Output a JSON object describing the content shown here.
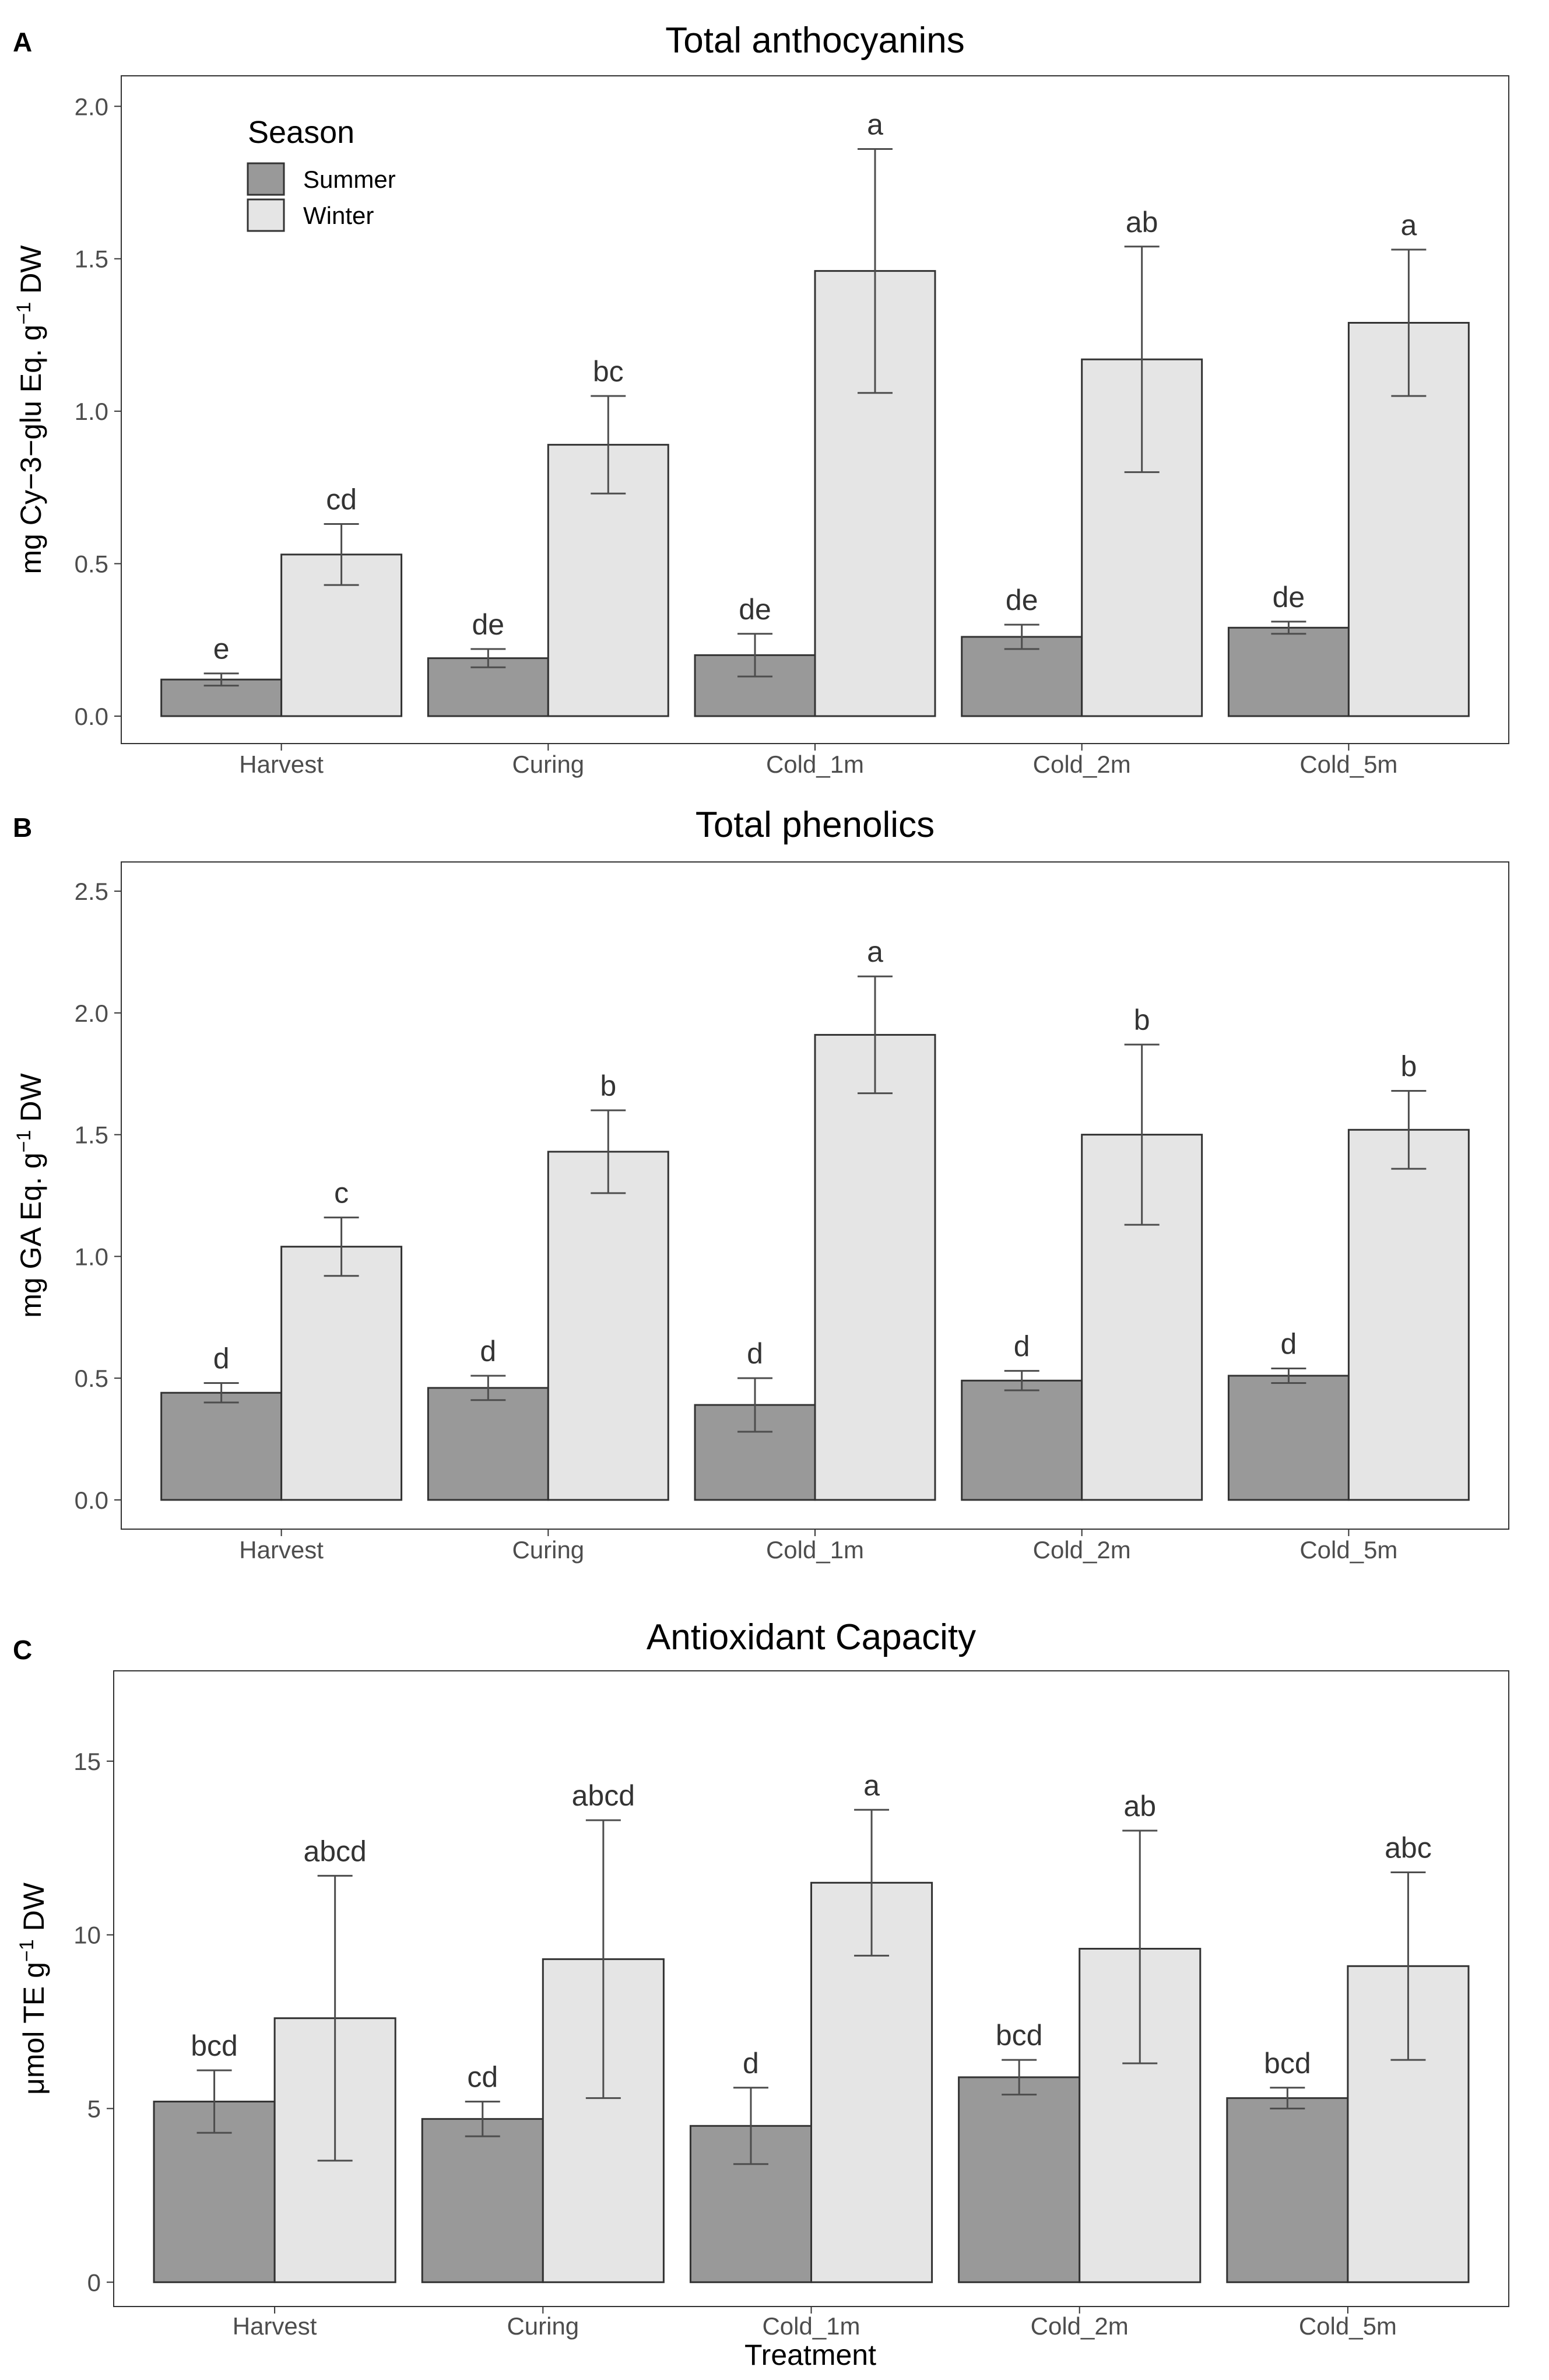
{
  "legend": {
    "title": "Season",
    "entries": [
      "Summer",
      "Winter"
    ],
    "colors": {
      "Summer": "#999999",
      "Winter": "#e5e5e5"
    }
  },
  "x_axis_title": "Treatment",
  "chart_data": [
    {
      "type": "bar",
      "panel_label": "A",
      "title": "Total anthocyanins",
      "ylabel_parts": {
        "base": "mg Cy−3−glu Eq. g",
        "sup": "−1",
        "tail": " DW"
      },
      "ylim": [
        -0.09,
        2.1
      ],
      "yticks": [
        "0.0",
        "0.5",
        "1.0",
        "1.5",
        "2.0"
      ],
      "ytick_values": [
        0,
        0.5,
        1.0,
        1.5,
        2.0
      ],
      "categories": [
        "Harvest",
        "Curing",
        "Cold_1m",
        "Cold_2m",
        "Cold_5m"
      ],
      "legend_position": "top-left",
      "series": [
        {
          "name": "Summer",
          "values": [
            0.12,
            0.19,
            0.2,
            0.26,
            0.29
          ],
          "err_low": [
            0.1,
            0.16,
            0.13,
            0.22,
            0.27
          ],
          "err_high": [
            0.14,
            0.22,
            0.27,
            0.3,
            0.31
          ],
          "letters": [
            "e",
            "de",
            "de",
            "de",
            "de"
          ]
        },
        {
          "name": "Winter",
          "values": [
            0.53,
            0.89,
            1.46,
            1.17,
            1.29
          ],
          "err_low": [
            0.43,
            0.73,
            1.06,
            0.8,
            1.05
          ],
          "err_high": [
            0.63,
            1.05,
            1.86,
            1.54,
            1.53
          ],
          "letters": [
            "cd",
            "bc",
            "a",
            "ab",
            "a"
          ]
        }
      ]
    },
    {
      "type": "bar",
      "panel_label": "B",
      "title": "Total phenolics",
      "ylabel_parts": {
        "base": "mg GA Eq. g",
        "sup": "−1",
        "tail": " DW"
      },
      "ylim": [
        -0.12,
        2.62
      ],
      "yticks": [
        "0.0",
        "0.5",
        "1.0",
        "1.5",
        "2.0",
        "2.5"
      ],
      "ytick_values": [
        0,
        0.5,
        1.0,
        1.5,
        2.0,
        2.5
      ],
      "categories": [
        "Harvest",
        "Curing",
        "Cold_1m",
        "Cold_2m",
        "Cold_5m"
      ],
      "series": [
        {
          "name": "Summer",
          "values": [
            0.44,
            0.46,
            0.39,
            0.49,
            0.51
          ],
          "err_low": [
            0.4,
            0.41,
            0.28,
            0.45,
            0.48
          ],
          "err_high": [
            0.48,
            0.51,
            0.5,
            0.53,
            0.54
          ],
          "letters": [
            "d",
            "d",
            "d",
            "d",
            "d"
          ]
        },
        {
          "name": "Winter",
          "values": [
            1.04,
            1.43,
            1.91,
            1.5,
            1.52
          ],
          "err_low": [
            0.92,
            1.26,
            1.67,
            1.13,
            1.36
          ],
          "err_high": [
            1.16,
            1.6,
            2.15,
            1.87,
            1.68
          ],
          "letters": [
            "c",
            "b",
            "a",
            "b",
            "b"
          ]
        }
      ]
    },
    {
      "type": "bar",
      "panel_label": "C",
      "title": "Antioxidant Capacity",
      "ylabel_parts": {
        "base": "μmol TE g",
        "sup": "−1",
        "tail": " DW"
      },
      "ylim": [
        -0.7,
        17.6
      ],
      "yticks": [
        "0",
        "5",
        "10",
        "15"
      ],
      "ytick_values": [
        0,
        5,
        10,
        15
      ],
      "categories": [
        "Harvest",
        "Curing",
        "Cold_1m",
        "Cold_2m",
        "Cold_5m"
      ],
      "series": [
        {
          "name": "Summer",
          "values": [
            5.2,
            4.7,
            4.5,
            5.9,
            5.3
          ],
          "err_low": [
            4.3,
            4.2,
            3.4,
            5.4,
            5.0
          ],
          "err_high": [
            6.1,
            5.2,
            5.6,
            6.4,
            5.6
          ],
          "letters": [
            "bcd",
            "cd",
            "d",
            "bcd",
            "bcd"
          ]
        },
        {
          "name": "Winter",
          "values": [
            7.6,
            9.3,
            11.5,
            9.6,
            9.1
          ],
          "err_low": [
            3.5,
            5.3,
            9.4,
            6.3,
            6.4
          ],
          "err_high": [
            11.7,
            13.3,
            13.6,
            13.0,
            11.8
          ],
          "letters": [
            "abcd",
            "abcd",
            "a",
            "ab",
            "abc"
          ]
        }
      ]
    }
  ]
}
